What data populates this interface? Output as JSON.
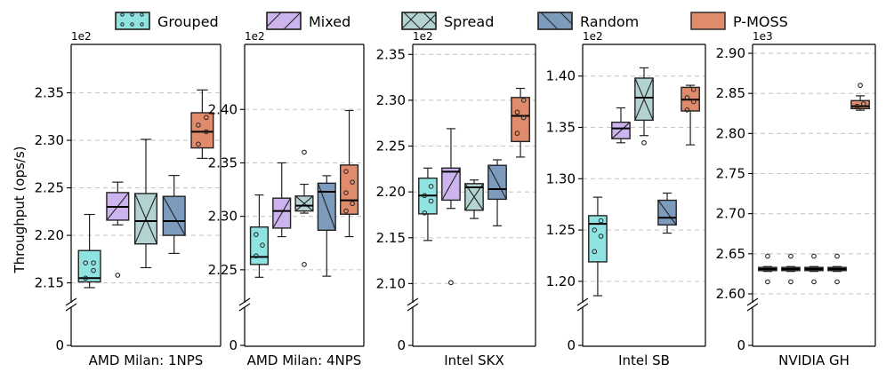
{
  "chart_data": {
    "type": "box",
    "ylabel": "Throughput (ops/s)",
    "legend": {
      "placement": "top",
      "entries": [
        {
          "name": "Grouped",
          "color": "#8fe3e1",
          "hatch": "dots"
        },
        {
          "name": "Mixed",
          "color": "#cdb4ef",
          "hatch": "slash"
        },
        {
          "name": "Spread",
          "color": "#b3d2d2",
          "hatch": "cross"
        },
        {
          "name": "Random",
          "color": "#7d9bbd",
          "hatch": "backslash"
        },
        {
          "name": "P-MOSS",
          "color": "#e08c6c",
          "hatch": "none"
        }
      ]
    },
    "panels": [
      {
        "category": "AMD Milan: 1NPS",
        "scale": "1e2",
        "ylim": [
          2.13,
          2.4
        ],
        "ticks": [
          "2.15",
          "2.20",
          "2.25",
          "2.30",
          "2.35"
        ],
        "grid": [
          2.15,
          2.2,
          2.25,
          2.3,
          2.35
        ],
        "zero_label": "0",
        "boxes": [
          {
            "series": "Grouped",
            "whislo": 2.145,
            "q1": 2.151,
            "med": 2.155,
            "q3": 2.184,
            "whishi": 2.222,
            "fliers": [],
            "dots": [
              2.155,
              2.163,
              2.171,
              2.171
            ]
          },
          {
            "series": "Mixed",
            "whislo": 2.211,
            "q1": 2.216,
            "med": 2.23,
            "q3": 2.245,
            "whishi": 2.256,
            "fliers": [
              2.158
            ],
            "dots": []
          },
          {
            "series": "Spread",
            "whislo": 2.166,
            "q1": 2.191,
            "med": 2.215,
            "q3": 2.244,
            "whishi": 2.301,
            "fliers": [],
            "dots": []
          },
          {
            "series": "Random",
            "whislo": 2.181,
            "q1": 2.2,
            "med": 2.215,
            "q3": 2.241,
            "whishi": 2.263,
            "fliers": [],
            "dots": []
          },
          {
            "series": "P-MOSS",
            "whislo": 2.281,
            "q1": 2.292,
            "med": 2.309,
            "q3": 2.329,
            "whishi": 2.353,
            "fliers": [],
            "dots": [
              2.296,
              2.309,
              2.316,
              2.324
            ]
          }
        ]
      },
      {
        "category": "AMD Milan: 4NPS",
        "scale": "1e2",
        "ylim": [
          2.22,
          2.46
        ],
        "ticks": [
          "2.25",
          "2.30",
          "2.35",
          "2.40"
        ],
        "grid": [
          2.25,
          2.3,
          2.35,
          2.4
        ],
        "zero_label": "0",
        "boxes": [
          {
            "series": "Grouped",
            "whislo": 2.243,
            "q1": 2.255,
            "med": 2.262,
            "q3": 2.29,
            "whishi": 2.32,
            "fliers": [],
            "dots": [
              2.263,
              2.273,
              2.283
            ]
          },
          {
            "series": "Mixed",
            "whislo": 2.281,
            "q1": 2.289,
            "med": 2.305,
            "q3": 2.317,
            "whishi": 2.35,
            "fliers": [],
            "dots": []
          },
          {
            "series": "Spread",
            "whislo": 2.303,
            "q1": 2.305,
            "med": 2.31,
            "q3": 2.319,
            "whishi": 2.33,
            "fliers": [
              2.255,
              2.36
            ],
            "dots": []
          },
          {
            "series": "Random",
            "whislo": 2.244,
            "q1": 2.287,
            "med": 2.323,
            "q3": 2.331,
            "whishi": 2.338,
            "fliers": [],
            "dots": []
          },
          {
            "series": "P-MOSS",
            "whislo": 2.281,
            "q1": 2.302,
            "med": 2.315,
            "q3": 2.348,
            "whishi": 2.399,
            "fliers": [],
            "dots": [
              2.305,
              2.312,
              2.322,
              2.332,
              2.342
            ]
          }
        ]
      },
      {
        "category": "Intel SKX",
        "scale": "1e2",
        "ylim": [
          2.08,
          2.36
        ],
        "ticks": [
          "2.10",
          "2.15",
          "2.20",
          "2.25",
          "2.30",
          "2.35"
        ],
        "grid": [
          2.1,
          2.15,
          2.2,
          2.25,
          2.3,
          2.35
        ],
        "zero_label": "0",
        "boxes": [
          {
            "series": "Grouped",
            "whislo": 2.147,
            "q1": 2.176,
            "med": 2.196,
            "q3": 2.215,
            "whishi": 2.226,
            "fliers": [],
            "dots": [
              2.177,
              2.19,
              2.196,
              2.206
            ]
          },
          {
            "series": "Mixed",
            "whislo": 2.182,
            "q1": 2.191,
            "med": 2.222,
            "q3": 2.226,
            "whishi": 2.269,
            "fliers": [
              2.101
            ],
            "dots": []
          },
          {
            "series": "Spread",
            "whislo": 2.171,
            "q1": 2.18,
            "med": 2.205,
            "q3": 2.209,
            "whishi": 2.213,
            "fliers": [],
            "dots": []
          },
          {
            "series": "Random",
            "whislo": 2.163,
            "q1": 2.192,
            "med": 2.203,
            "q3": 2.229,
            "whishi": 2.235,
            "fliers": [],
            "dots": []
          },
          {
            "series": "P-MOSS",
            "whislo": 2.238,
            "q1": 2.255,
            "med": 2.283,
            "q3": 2.303,
            "whishi": 2.313,
            "fliers": [],
            "dots": [
              2.264,
              2.281,
              2.287,
              2.3
            ]
          }
        ]
      },
      {
        "category": "Intel SB",
        "scale": "1e2",
        "ylim": [
          1.18,
          1.43
        ],
        "ticks": [
          "1.20",
          "1.25",
          "1.30",
          "1.35",
          "1.40"
        ],
        "grid": [
          1.2,
          1.25,
          1.3,
          1.35,
          1.4
        ],
        "zero_label": "0",
        "boxes": [
          {
            "series": "Grouped",
            "whislo": 1.186,
            "q1": 1.219,
            "med": 1.256,
            "q3": 1.264,
            "whishi": 1.282,
            "fliers": [],
            "dots": [
              1.229,
              1.244,
              1.25,
              1.259
            ]
          },
          {
            "series": "Mixed",
            "whislo": 1.335,
            "q1": 1.339,
            "med": 1.349,
            "q3": 1.355,
            "whishi": 1.369,
            "fliers": [],
            "dots": []
          },
          {
            "series": "Spread",
            "whislo": 1.342,
            "q1": 1.357,
            "med": 1.379,
            "q3": 1.398,
            "whishi": 1.408,
            "fliers": [
              1.335
            ],
            "dots": []
          },
          {
            "series": "Random",
            "whislo": 1.247,
            "q1": 1.255,
            "med": 1.262,
            "q3": 1.279,
            "whishi": 1.286,
            "fliers": [],
            "dots": []
          },
          {
            "series": "P-MOSS",
            "whislo": 1.333,
            "q1": 1.366,
            "med": 1.377,
            "q3": 1.389,
            "whishi": 1.391,
            "fliers": [],
            "dots": [
              1.367,
              1.375,
              1.379,
              1.387
            ]
          }
        ]
      },
      {
        "category": "NVIDIA GH",
        "scale": "1e3",
        "ylim": [
          2.59,
          2.91
        ],
        "ticks": [
          "2.60",
          "2.65",
          "2.70",
          "2.75",
          "2.80",
          "2.85",
          "2.90"
        ],
        "grid": [
          2.6,
          2.65,
          2.7,
          2.75,
          2.8,
          2.85,
          2.9
        ],
        "zero_label": "0",
        "boxes": [
          {
            "series": "Grouped",
            "whislo": 2.628,
            "q1": 2.629,
            "med": 2.631,
            "q3": 2.633,
            "whishi": 2.634,
            "fliers": [
              2.615,
              2.647
            ],
            "dots": []
          },
          {
            "series": "Mixed",
            "whislo": 2.628,
            "q1": 2.629,
            "med": 2.631,
            "q3": 2.633,
            "whishi": 2.634,
            "fliers": [
              2.615,
              2.647
            ],
            "dots": []
          },
          {
            "series": "Spread",
            "whislo": 2.628,
            "q1": 2.629,
            "med": 2.631,
            "q3": 2.633,
            "whishi": 2.634,
            "fliers": [
              2.615,
              2.647
            ],
            "dots": []
          },
          {
            "series": "Random",
            "whislo": 2.628,
            "q1": 2.629,
            "med": 2.631,
            "q3": 2.633,
            "whishi": 2.634,
            "fliers": [
              2.615,
              2.647
            ],
            "dots": []
          },
          {
            "series": "P-MOSS",
            "whislo": 2.829,
            "q1": 2.831,
            "med": 2.834,
            "q3": 2.841,
            "whishi": 2.847,
            "fliers": [
              2.86
            ],
            "dots": [
              2.834,
              2.837
            ]
          }
        ]
      }
    ]
  }
}
